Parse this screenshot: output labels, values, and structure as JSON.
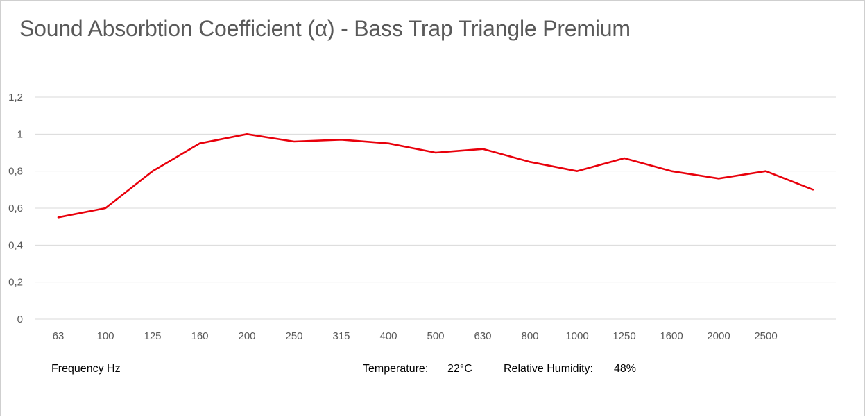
{
  "chart_data": {
    "type": "line",
    "title": "Sound Absorbtion Coefficient (α) - Bass Trap Triangle Premium",
    "xlabel": "Frequency Hz",
    "ylabel": "",
    "categories": [
      "63",
      "100",
      "125",
      "160",
      "200",
      "250",
      "315",
      "400",
      "500",
      "630",
      "800",
      "1000",
      "1250",
      "1600",
      "2000",
      "2500",
      ""
    ],
    "series": [
      {
        "values": [
          0.55,
          0.6,
          0.8,
          0.95,
          1.0,
          0.96,
          0.97,
          0.95,
          0.9,
          0.92,
          0.85,
          0.8,
          0.87,
          0.8,
          0.76,
          0.8,
          0.7
        ],
        "color": "#e8000b"
      }
    ],
    "ylim": [
      0,
      1.2
    ],
    "y_ticks": [
      "0",
      "0,2",
      "0,4",
      "0,6",
      "0,8",
      "1",
      "1,2"
    ],
    "grid": true,
    "gridline_color": "#d9d9d9",
    "legend": "none"
  },
  "notes": {
    "temperature_label": "Temperature:",
    "temperature_value": "22°C",
    "humidity_label": "Relative Humidity:",
    "humidity_value": "48%"
  }
}
